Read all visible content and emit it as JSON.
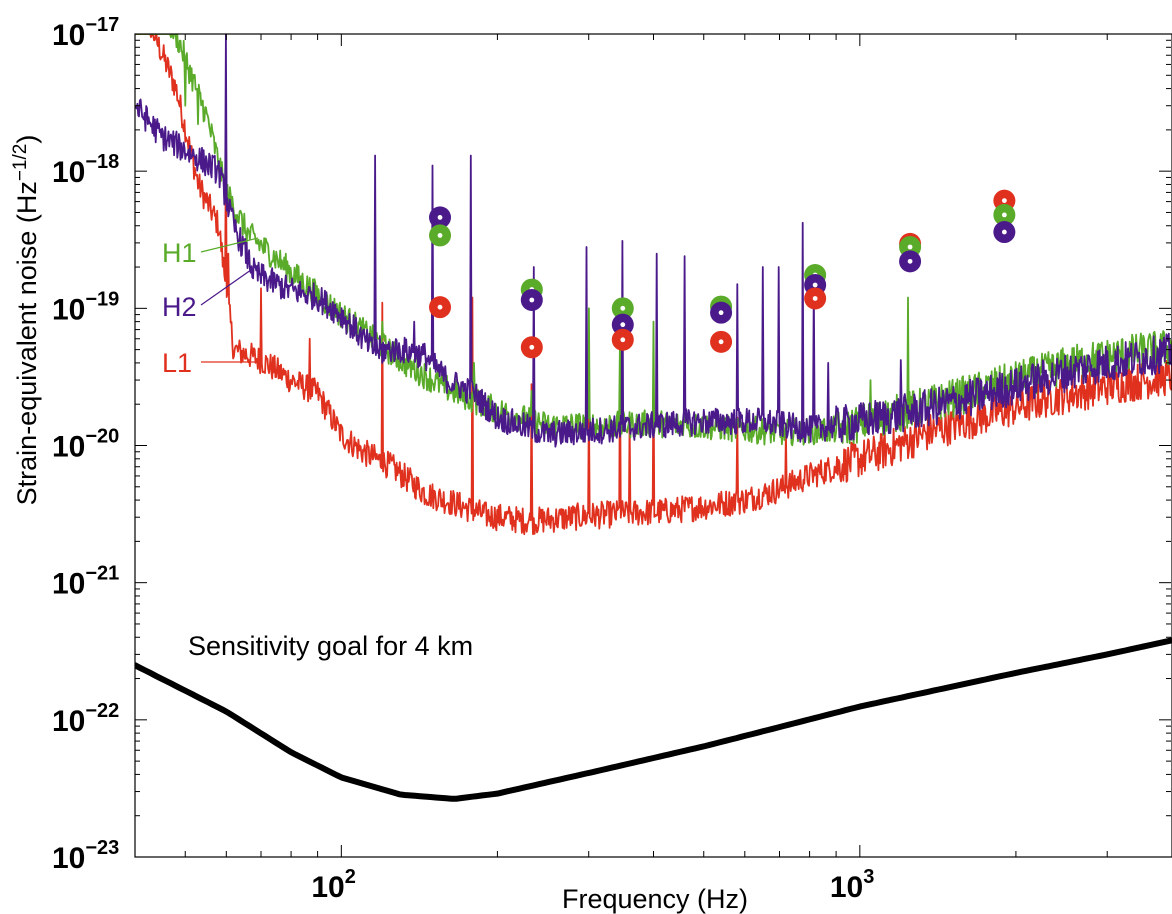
{
  "chart_data": {
    "type": "line",
    "xlabel": "Frequency (Hz)",
    "ylabel": "Strain-equivalent noise (Hz",
    "ylabel_exponent": "−1/2",
    "ylabel_close": ")",
    "x_scale": "log",
    "y_scale": "log",
    "xlim": [
      40,
      4000
    ],
    "ylim": [
      1e-23,
      1e-17
    ],
    "grid": false,
    "x_ticks": [
      {
        "value": 100,
        "base": "10",
        "exp": "2"
      },
      {
        "value": 1000,
        "base": "10",
        "exp": "3"
      }
    ],
    "y_ticks": [
      {
        "value": 1e-17,
        "base": "10",
        "exp": "−17"
      },
      {
        "value": 1e-18,
        "base": "10",
        "exp": "−18"
      },
      {
        "value": 1e-19,
        "base": "10",
        "exp": "−19"
      },
      {
        "value": 1e-20,
        "base": "10",
        "exp": "−20"
      },
      {
        "value": 1e-21,
        "base": "10",
        "exp": "−21"
      },
      {
        "value": 1e-22,
        "base": "10",
        "exp": "−22"
      },
      {
        "value": 1e-23,
        "base": "10",
        "exp": "−23"
      }
    ],
    "series": [
      {
        "name": "H1",
        "color": "#5aab2a",
        "baseline": [
          [
            40,
            3e-17
          ],
          [
            48,
            1e-17
          ],
          [
            55,
            2.5e-18
          ],
          [
            60,
            7e-19
          ],
          [
            66,
            3.5e-19
          ],
          [
            75,
            2.3e-19
          ],
          [
            85,
            1.5e-19
          ],
          [
            100,
            9e-20
          ],
          [
            115,
            6e-20
          ],
          [
            135,
            3.8e-20
          ],
          [
            160,
            2.6e-20
          ],
          [
            200,
            1.8e-20
          ],
          [
            250,
            1.4e-20
          ],
          [
            320,
            1.4e-20
          ],
          [
            400,
            1.45e-20
          ],
          [
            550,
            1.35e-20
          ],
          [
            700,
            1.25e-20
          ],
          [
            900,
            1.3e-20
          ],
          [
            1100,
            1.6e-20
          ],
          [
            1500,
            2.2e-20
          ],
          [
            2000,
            3e-20
          ],
          [
            2600,
            4e-20
          ],
          [
            3200,
            4.6e-20
          ],
          [
            4000,
            5.2e-20
          ]
        ],
        "lines": [
          [
            46,
            1.3e-17
          ],
          [
            50,
            3e-18
          ],
          [
            53,
            2.2e-18
          ],
          [
            60,
            2e-18
          ],
          [
            120,
            8e-20
          ],
          [
            145,
            3.5e-20
          ],
          [
            180,
            4e-20
          ],
          [
            233,
            2.5e-20
          ],
          [
            300,
            1e-19
          ],
          [
            345,
            6e-20
          ],
          [
            400,
            8e-20
          ],
          [
            460,
            2.5e-20
          ],
          [
            1050,
            3e-20
          ],
          [
            1240,
            1.2e-19
          ]
        ]
      },
      {
        "name": "H2",
        "color": "#4b1a8a",
        "baseline": [
          [
            40,
            3e-18
          ],
          [
            45,
            1.8e-18
          ],
          [
            52,
            1.3e-18
          ],
          [
            58,
            1e-18
          ],
          [
            62,
            4e-19
          ],
          [
            68,
            1.8e-19
          ],
          [
            78,
            1.4e-19
          ],
          [
            90,
            1.2e-19
          ],
          [
            100,
            9e-20
          ],
          [
            115,
            5e-20
          ],
          [
            130,
            5e-20
          ],
          [
            145,
            4.5e-20
          ],
          [
            160,
            3e-20
          ],
          [
            180,
            2.4e-20
          ],
          [
            200,
            1.6e-20
          ],
          [
            250,
            1.2e-20
          ],
          [
            320,
            1.3e-20
          ],
          [
            400,
            1.4e-20
          ],
          [
            500,
            1.5e-20
          ],
          [
            650,
            1.5e-20
          ],
          [
            800,
            1.3e-20
          ],
          [
            1000,
            1.5e-20
          ],
          [
            1300,
            1.8e-20
          ],
          [
            1700,
            2.3e-20
          ],
          [
            2200,
            3e-20
          ],
          [
            2800,
            3.8e-20
          ],
          [
            3400,
            4.3e-20
          ],
          [
            4000,
            4.8e-20
          ]
        ],
        "lines": [
          [
            60,
            1e-17
          ],
          [
            116,
            1.3e-18
          ],
          [
            120,
            4e-20
          ],
          [
            138,
            8e-20
          ],
          [
            150,
            1.1e-18
          ],
          [
            178,
            1.3e-18
          ],
          [
            235,
            2e-19
          ],
          [
            297,
            2.8e-19
          ],
          [
            348,
            3.1e-19
          ],
          [
            405,
            2.5e-19
          ],
          [
            460,
            2.4e-19
          ],
          [
            580,
            1.5e-19
          ],
          [
            650,
            2e-19
          ],
          [
            697,
            2e-19
          ],
          [
            777,
            4.2e-19
          ],
          [
            815,
            1.5e-19
          ],
          [
            870,
            4e-20
          ],
          [
            1200,
            4.2e-20
          ]
        ]
      },
      {
        "name": "L1",
        "color": "#e0301e",
        "baseline": [
          [
            40,
            2.2e-17
          ],
          [
            48,
            4e-18
          ],
          [
            53,
            8e-19
          ],
          [
            58,
            4e-19
          ],
          [
            62,
            5e-20
          ],
          [
            70,
            4.2e-20
          ],
          [
            80,
            3e-20
          ],
          [
            90,
            2.4e-20
          ],
          [
            100,
            1.2e-20
          ],
          [
            110,
            9e-21
          ],
          [
            125,
            7e-21
          ],
          [
            145,
            4.5e-21
          ],
          [
            165,
            3.8e-21
          ],
          [
            190,
            3.1e-21
          ],
          [
            230,
            2.8e-21
          ],
          [
            280,
            3e-21
          ],
          [
            350,
            3.2e-21
          ],
          [
            420,
            3.3e-21
          ],
          [
            500,
            3.6e-21
          ],
          [
            600,
            4e-21
          ],
          [
            700,
            4.8e-21
          ],
          [
            800,
            6e-21
          ],
          [
            950,
            7.5e-21
          ],
          [
            1100,
            9e-21
          ],
          [
            1400,
            1.3e-20
          ],
          [
            1800,
            1.7e-20
          ],
          [
            2300,
            2.2e-20
          ],
          [
            3000,
            2.7e-20
          ],
          [
            4000,
            3.2e-20
          ]
        ],
        "lines": [
          [
            60,
            1.7e-18
          ],
          [
            60.5,
            2.5e-19
          ],
          [
            70,
            1.4e-19
          ],
          [
            87,
            6e-20
          ],
          [
            120,
            1.1e-19
          ],
          [
            179,
            1.2e-19
          ],
          [
            233,
            2.8e-20
          ],
          [
            300,
            2.2e-20
          ],
          [
            345,
            4.5e-20
          ],
          [
            360,
            1.5e-20
          ],
          [
            400,
            4e-20
          ],
          [
            580,
            1.6e-20
          ],
          [
            720,
            1.3e-20
          ]
        ]
      }
    ],
    "markers": [
      {
        "series": "H2",
        "x": 155,
        "y": 4.6e-19
      },
      {
        "series": "H1",
        "x": 155,
        "y": 3.4e-19
      },
      {
        "series": "L1",
        "x": 155,
        "y": 1.02e-19
      },
      {
        "series": "H1",
        "x": 233,
        "y": 1.37e-19
      },
      {
        "series": "H2",
        "x": 233,
        "y": 1.15e-19
      },
      {
        "series": "L1",
        "x": 233,
        "y": 5.2e-20
      },
      {
        "series": "H1",
        "x": 349,
        "y": 1e-19
      },
      {
        "series": "H2",
        "x": 349,
        "y": 7.6e-20
      },
      {
        "series": "L1",
        "x": 349,
        "y": 5.9e-20
      },
      {
        "series": "H1",
        "x": 540,
        "y": 1.03e-19
      },
      {
        "series": "H2",
        "x": 540,
        "y": 9.3e-20
      },
      {
        "series": "L1",
        "x": 540,
        "y": 5.7e-20
      },
      {
        "series": "H1",
        "x": 820,
        "y": 1.75e-19
      },
      {
        "series": "H2",
        "x": 820,
        "y": 1.48e-19
      },
      {
        "series": "L1",
        "x": 820,
        "y": 1.18e-19
      },
      {
        "series": "L1",
        "x": 1250,
        "y": 2.95e-19
      },
      {
        "series": "H1",
        "x": 1250,
        "y": 2.8e-19
      },
      {
        "series": "H2",
        "x": 1250,
        "y": 2.2e-19
      },
      {
        "series": "L1",
        "x": 1900,
        "y": 6.1e-19
      },
      {
        "series": "H1",
        "x": 1900,
        "y": 4.8e-19
      },
      {
        "series": "H2",
        "x": 1900,
        "y": 3.6e-19
      }
    ],
    "goal_curve": {
      "label": "Sensitivity goal for 4 km",
      "color": "#000000",
      "points": [
        [
          40,
          2.5e-22
        ],
        [
          60,
          1.15e-22
        ],
        [
          80,
          5.8e-23
        ],
        [
          100,
          3.8e-23
        ],
        [
          130,
          2.85e-23
        ],
        [
          165,
          2.65e-23
        ],
        [
          200,
          2.9e-23
        ],
        [
          300,
          4.1e-23
        ],
        [
          500,
          6.4e-23
        ],
        [
          1000,
          1.25e-22
        ],
        [
          2000,
          2.2e-22
        ],
        [
          3000,
          3e-22
        ],
        [
          4000,
          3.8e-22
        ]
      ]
    },
    "annotations": [
      {
        "text": "H1",
        "series": "H1"
      },
      {
        "text": "H2",
        "series": "H2"
      },
      {
        "text": "L1",
        "series": "L1"
      }
    ]
  }
}
